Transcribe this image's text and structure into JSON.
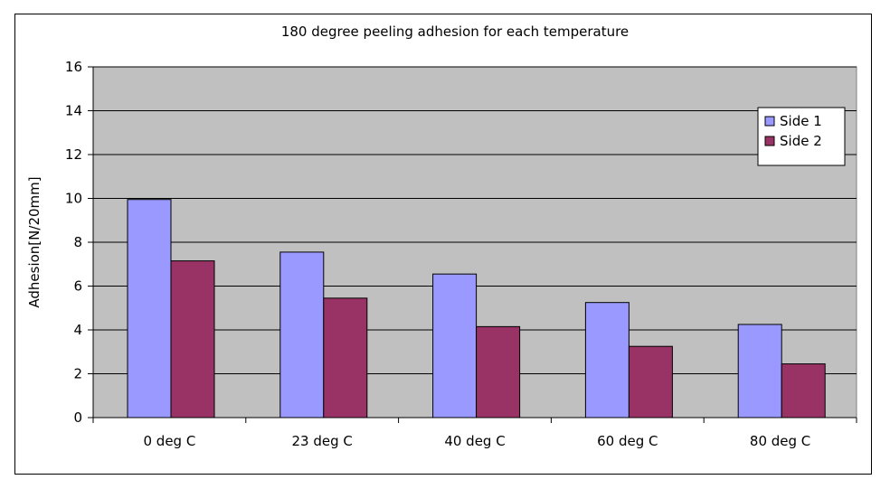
{
  "chart_data": {
    "type": "bar",
    "title": "180 degree peeling adhesion for each temperature",
    "xlabel": "",
    "ylabel": "Adhesion[N/20mm]",
    "categories": [
      "0 deg C",
      "23 deg C",
      "40 deg C",
      "60 deg C",
      "80 deg C"
    ],
    "series": [
      {
        "name": "Side 1",
        "color": "#9999FF",
        "values": [
          9.95,
          7.55,
          6.55,
          5.25,
          4.25
        ]
      },
      {
        "name": "Side 2",
        "color": "#993366",
        "values": [
          7.15,
          5.45,
          4.15,
          3.25,
          2.45
        ]
      }
    ],
    "ylim": [
      0,
      16
    ],
    "yticks": [
      0,
      2,
      4,
      6,
      8,
      10,
      12,
      14,
      16
    ],
    "grid": true,
    "legend_position": "top-right",
    "plot_background": "#C0C0C0"
  }
}
